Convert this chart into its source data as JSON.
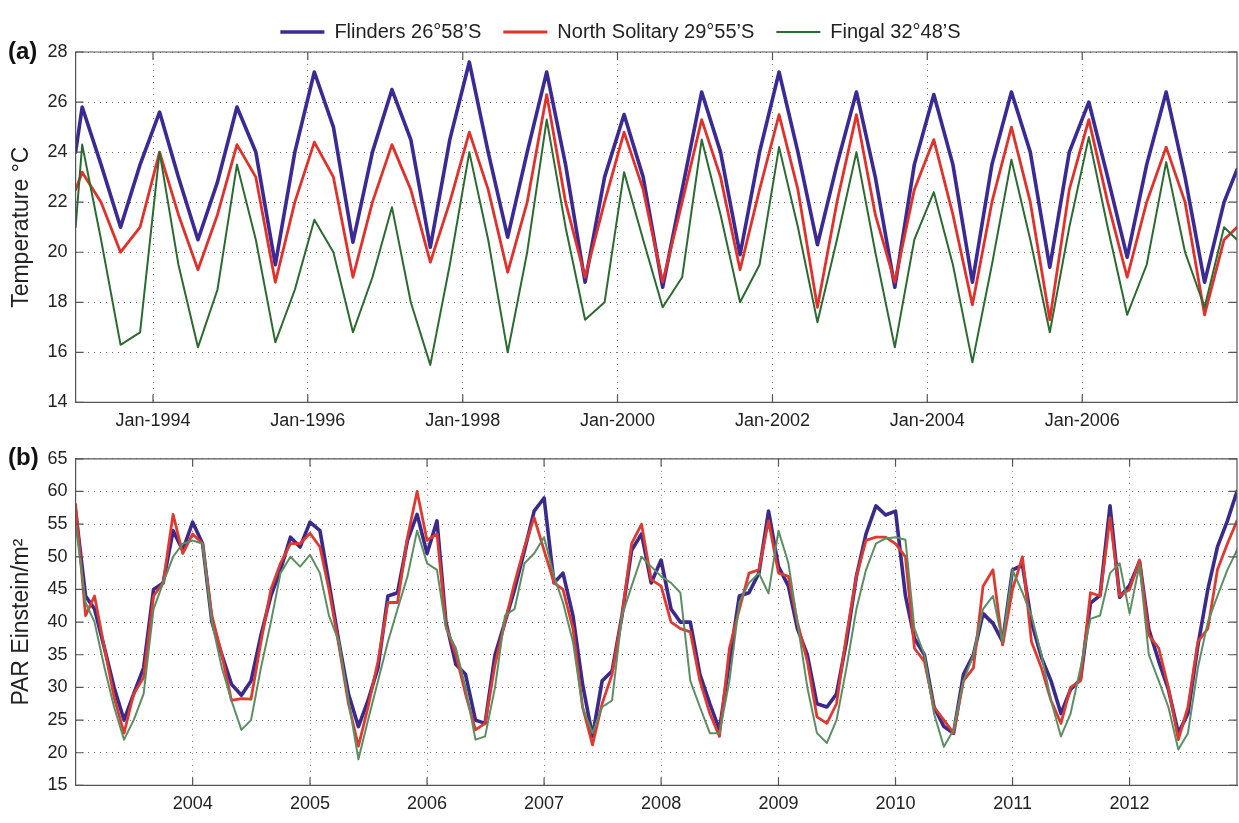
{
  "chart_data": [
    {
      "type": "line",
      "title": "(a)",
      "ylabel": "Temperature °C",
      "legend": "top",
      "grid": true,
      "xlim": [
        "1993-01-01",
        "2008-01-01"
      ],
      "xticks": [
        {
          "value": "1994-01-01",
          "label": "Jan-1994"
        },
        {
          "value": "1996-01-01",
          "label": "Jan-1996"
        },
        {
          "value": "1998-01-01",
          "label": "Jan-1998"
        },
        {
          "value": "2000-01-01",
          "label": "Jan-2000"
        },
        {
          "value": "2002-01-01",
          "label": "Jan-2002"
        },
        {
          "value": "2004-01-01",
          "label": "Jan-2004"
        },
        {
          "value": "2006-01-01",
          "label": "Jan-2006"
        }
      ],
      "ylim": [
        14,
        28
      ],
      "yticks": [
        14,
        16,
        18,
        20,
        22,
        24,
        26,
        28
      ],
      "x": [
        "1993-01",
        "1993-02",
        "1993-05",
        "1993-08",
        "1993-11",
        "1994-02",
        "1994-05",
        "1994-08",
        "1994-11",
        "1995-02",
        "1995-05",
        "1995-08",
        "1995-11",
        "1996-02",
        "1996-05",
        "1996-08",
        "1996-11",
        "1997-02",
        "1997-05",
        "1997-08",
        "1997-11",
        "1998-02",
        "1998-05",
        "1998-08",
        "1998-11",
        "1999-02",
        "1999-05",
        "1999-08",
        "1999-11",
        "2000-02",
        "2000-05",
        "2000-08",
        "2000-11",
        "2001-02",
        "2001-05",
        "2001-08",
        "2001-11",
        "2002-02",
        "2002-05",
        "2002-08",
        "2002-11",
        "2003-02",
        "2003-05",
        "2003-08",
        "2003-11",
        "2004-02",
        "2004-05",
        "2004-08",
        "2004-11",
        "2005-02",
        "2005-05",
        "2005-08",
        "2005-11",
        "2006-02",
        "2006-05",
        "2006-08",
        "2006-11",
        "2007-02",
        "2007-05",
        "2007-08",
        "2007-11",
        "2008-01"
      ],
      "series": [
        {
          "name": "Flinders 26°58’S",
          "color": "#3b2a96",
          "values": [
            24.0,
            25.8,
            23.5,
            21.0,
            23.5,
            25.6,
            23.0,
            20.5,
            22.8,
            25.8,
            24.0,
            19.5,
            24.0,
            27.2,
            25.0,
            20.4,
            24.0,
            26.5,
            24.5,
            20.2,
            24.5,
            27.6,
            24.0,
            20.6,
            24.0,
            27.2,
            23.5,
            18.8,
            23.0,
            25.5,
            23.0,
            18.6,
            22.5,
            26.4,
            24.0,
            19.9,
            24.0,
            27.2,
            24.0,
            20.3,
            23.5,
            26.4,
            23.0,
            18.6,
            23.5,
            26.3,
            23.5,
            18.8,
            23.5,
            26.4,
            24.0,
            19.4,
            24.0,
            26.0,
            23.0,
            19.8,
            23.5,
            26.4,
            23.0,
            18.8,
            22.0,
            23.3
          ]
        },
        {
          "name": "North Solitary 29°55’S",
          "color": "#e2302a",
          "values": [
            22.5,
            23.2,
            22.0,
            20.0,
            21.0,
            24.0,
            21.5,
            19.3,
            21.5,
            24.3,
            23.0,
            18.8,
            22.0,
            24.4,
            23.0,
            19.0,
            22.0,
            24.3,
            22.5,
            19.6,
            22.0,
            24.8,
            22.5,
            19.2,
            22.0,
            26.3,
            22.0,
            19.0,
            22.0,
            24.8,
            22.5,
            18.8,
            22.0,
            25.3,
            23.0,
            19.3,
            22.5,
            25.5,
            22.5,
            17.8,
            22.0,
            25.5,
            21.5,
            18.8,
            22.5,
            24.5,
            21.5,
            17.9,
            22.0,
            25.0,
            22.0,
            17.3,
            22.5,
            25.3,
            22.0,
            19.0,
            22.0,
            24.2,
            22.0,
            17.5,
            20.5,
            21.0
          ]
        },
        {
          "name": "Fingal 32°48’S",
          "color": "#2a6b30",
          "values": [
            21.0,
            24.3,
            20.5,
            16.3,
            16.8,
            24.0,
            19.5,
            16.2,
            18.5,
            23.5,
            20.5,
            16.4,
            18.5,
            21.3,
            20.0,
            16.8,
            19.0,
            21.8,
            18.0,
            15.5,
            19.5,
            24.0,
            20.5,
            16.0,
            20.0,
            25.3,
            21.0,
            17.3,
            18.0,
            23.2,
            20.5,
            17.8,
            19.0,
            24.5,
            21.5,
            18.0,
            19.5,
            24.2,
            21.0,
            17.2,
            20.5,
            24.0,
            20.0,
            16.2,
            20.5,
            22.4,
            19.5,
            15.6,
            19.5,
            23.7,
            20.5,
            16.8,
            21.0,
            24.6,
            21.0,
            17.5,
            19.5,
            23.6,
            20.0,
            17.8,
            21.0,
            20.5
          ]
        }
      ]
    },
    {
      "type": "line",
      "title": "(b)",
      "ylabel": "PAR Einstein/m²",
      "grid": true,
      "xlim": [
        "2003-01-01",
        "2012-12-01"
      ],
      "xticks": [
        {
          "value": "2004-01-01",
          "label": "2004"
        },
        {
          "value": "2005-01-01",
          "label": "2005"
        },
        {
          "value": "2006-01-01",
          "label": "2006"
        },
        {
          "value": "2007-01-01",
          "label": "2007"
        },
        {
          "value": "2008-01-01",
          "label": "2008"
        },
        {
          "value": "2009-01-01",
          "label": "2009"
        },
        {
          "value": "2010-01-01",
          "label": "2010"
        },
        {
          "value": "2011-01-01",
          "label": "2011"
        },
        {
          "value": "2012-01-01",
          "label": "2012"
        }
      ],
      "ylim": [
        15,
        65
      ],
      "yticks": [
        15,
        20,
        25,
        30,
        35,
        40,
        45,
        50,
        55,
        60,
        65
      ],
      "x": [
        "2003-01",
        "2003-02",
        "2003-03",
        "2003-04",
        "2003-05",
        "2003-06",
        "2003-07",
        "2003-08",
        "2003-09",
        "2003-10",
        "2003-11",
        "2003-12",
        "2004-01",
        "2004-02",
        "2004-03",
        "2004-04",
        "2004-05",
        "2004-06",
        "2004-07",
        "2004-08",
        "2004-09",
        "2004-10",
        "2004-11",
        "2004-12",
        "2005-01",
        "2005-02",
        "2005-03",
        "2005-04",
        "2005-05",
        "2005-06",
        "2005-07",
        "2005-08",
        "2005-09",
        "2005-10",
        "2005-11",
        "2005-12",
        "2006-01",
        "2006-02",
        "2006-03",
        "2006-04",
        "2006-05",
        "2006-06",
        "2006-07",
        "2006-08",
        "2006-09",
        "2006-10",
        "2006-11",
        "2006-12",
        "2007-01",
        "2007-02",
        "2007-03",
        "2007-04",
        "2007-05",
        "2007-06",
        "2007-07",
        "2007-08",
        "2007-09",
        "2007-10",
        "2007-11",
        "2007-12",
        "2008-01",
        "2008-02",
        "2008-03",
        "2008-04",
        "2008-05",
        "2008-06",
        "2008-07",
        "2008-08",
        "2008-09",
        "2008-10",
        "2008-11",
        "2008-12",
        "2009-01",
        "2009-02",
        "2009-03",
        "2009-04",
        "2009-05",
        "2009-06",
        "2009-07",
        "2009-08",
        "2009-09",
        "2009-10",
        "2009-11",
        "2009-12",
        "2010-01",
        "2010-02",
        "2010-03",
        "2010-04",
        "2010-05",
        "2010-06",
        "2010-07",
        "2010-08",
        "2010-09",
        "2010-10",
        "2010-11",
        "2010-12",
        "2011-01",
        "2011-02",
        "2011-03",
        "2011-04",
        "2011-05",
        "2011-06",
        "2011-07",
        "2011-08",
        "2011-09",
        "2011-10",
        "2011-11",
        "2011-12",
        "2012-01",
        "2012-02",
        "2012-03",
        "2012-04",
        "2012-05",
        "2012-06",
        "2012-07",
        "2012-08",
        "2012-09",
        "2012-10",
        "2012-11",
        "2012-12"
      ],
      "series": [
        {
          "color": "#3b2a8c",
          "values": [
            57,
            44,
            42,
            36,
            30,
            25,
            29,
            33,
            45,
            46,
            54,
            51,
            55.3,
            52,
            40,
            35,
            30.5,
            28.8,
            31,
            38,
            44,
            48,
            53,
            51.5,
            55.3,
            54,
            46,
            37,
            29,
            24,
            28,
            33,
            44,
            44.5,
            52.5,
            56.5,
            50.5,
            55.5,
            40,
            33.5,
            32,
            25,
            24.5,
            35,
            40,
            45,
            51,
            57,
            59,
            46,
            47.5,
            41,
            30.5,
            22.5,
            31,
            32.5,
            41,
            51,
            53.5,
            46,
            49.5,
            42,
            40,
            40,
            32,
            27.5,
            23.5,
            34,
            44,
            44.5,
            47.5,
            57,
            48.5,
            45.5,
            39,
            35,
            27.5,
            27,
            29,
            37,
            47,
            53.5,
            57.8,
            56.4,
            57,
            44,
            37.5,
            35,
            27,
            24,
            23,
            32,
            35,
            41.3,
            39.8,
            37,
            48,
            48.7,
            40,
            34.6,
            31,
            26,
            29.7,
            31.2,
            42.9,
            44.1,
            57.8,
            43.8,
            45.6,
            49.3,
            38.9,
            34,
            29.7,
            23,
            26,
            36.4,
            45,
            51.5,
            55.5,
            60
          ]
        },
        {
          "color": "#e03a30",
          "values": [
            58,
            41,
            44,
            36,
            28.5,
            23,
            29,
            31.5,
            44,
            46,
            56.5,
            50.5,
            53.5,
            52,
            41,
            35,
            28,
            28.3,
            28.2,
            37,
            45,
            49,
            52,
            52,
            53.6,
            51.5,
            45,
            36.5,
            27.5,
            21,
            27,
            34,
            43,
            43,
            53,
            60,
            52.5,
            53.5,
            39.5,
            35,
            29,
            23.5,
            24.5,
            33.5,
            40,
            46,
            51.5,
            56,
            51,
            46,
            45,
            39,
            27,
            21.2,
            27.5,
            32,
            41,
            52,
            55,
            46.5,
            45.5,
            40,
            39,
            38.5,
            31,
            26,
            22.5,
            36,
            42,
            47.5,
            48,
            55.5,
            47.5,
            47,
            40,
            34,
            25.5,
            24.5,
            27.5,
            38,
            47,
            52.5,
            53,
            53,
            52,
            50,
            36,
            34,
            27,
            25,
            23,
            31,
            33,
            45.5,
            48,
            36.5,
            45,
            50,
            37,
            33,
            28,
            24.5,
            30,
            31,
            44.5,
            44,
            56,
            44,
            45,
            49.5,
            38,
            36,
            30,
            22,
            27,
            37,
            39,
            48,
            52,
            55.5
          ]
        },
        {
          "color": "#5b8f62",
          "values": [
            55,
            43,
            40,
            33,
            27,
            22,
            25,
            29,
            42,
            46,
            50,
            52,
            52.5,
            52,
            40,
            33,
            28,
            23.5,
            25,
            33,
            40,
            47.5,
            50,
            48.5,
            50.3,
            47.5,
            41,
            37,
            28,
            19,
            25,
            31,
            37,
            42,
            47,
            54,
            49,
            48,
            39,
            36,
            30,
            22,
            22.5,
            30,
            41,
            42,
            49,
            50.5,
            53,
            47,
            43,
            37,
            27,
            23,
            27,
            28,
            41,
            45.5,
            50,
            48.5,
            47,
            46,
            44.5,
            31,
            27,
            23,
            23,
            31,
            43,
            46,
            47.5,
            44.4,
            54,
            49,
            40,
            30,
            23,
            21.5,
            25,
            33,
            42,
            48,
            52,
            52.8,
            53,
            52.6,
            39,
            35,
            26,
            20.9,
            23.5,
            31,
            35,
            42,
            44,
            37,
            48,
            44.5,
            41,
            35,
            28,
            22.5,
            26,
            33,
            40.5,
            41,
            47.5,
            49,
            41.3,
            48.8,
            35,
            31,
            27,
            20.5,
            23,
            33,
            40,
            44,
            48,
            51
          ]
        }
      ]
    }
  ]
}
